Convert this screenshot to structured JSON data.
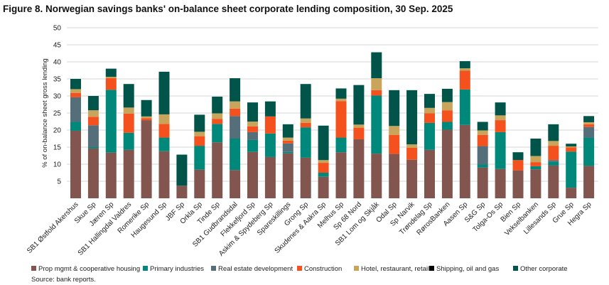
{
  "chart_data": {
    "type": "bar",
    "stacked": true,
    "title": "Figure 8. Norwegian savings banks' on-balance sheet corporate lending composition, 30 Sep. 2025",
    "ylabel": "% of on-balance sheet gross lending",
    "xlabel": "",
    "ylim": [
      0,
      50
    ],
    "yticks": [
      5,
      10,
      15,
      20,
      25,
      30,
      35,
      40,
      45,
      50
    ],
    "grid": true,
    "legend_placement": "bottom",
    "source": "Source: bank reports.",
    "categories": [
      "SB1 Østfold Akershus",
      "Skue Sp",
      "Jæren Sp",
      "SB1 Hallingdal Valdres",
      "Romerike Sp",
      "Haugesund Sp",
      "JBF Sp",
      "Orkla Sp",
      "Tinde Sp",
      "SB1 Gudbrandsdal",
      "Flekkefjord Sp",
      "Askim & Spydeberg Sp",
      "Spareskillings",
      "Grong Sp",
      "Skudenes & Aakra Sp",
      "Melhus Sp",
      "Sp 68 Nord",
      "SB1 Lom og Skjåk",
      "Odal Sp",
      "Sp Narvik",
      "Trøndelag Sp",
      "RørosBanken",
      "Aasen Sp",
      "S&G Sp",
      "Tolga-Os Sp",
      "Bien Sp",
      "Vekselbanken",
      "Lillesands Sp",
      "Grue Sp",
      "Hegra Sp"
    ],
    "series": [
      {
        "name": "Prop mgmt & cooperative housing",
        "color": "#82564f",
        "values": [
          19.8,
          14.6,
          13.4,
          14.2,
          22.9,
          13.8,
          3.7,
          8.4,
          16.4,
          8.3,
          13.6,
          12.1,
          13.2,
          11.9,
          6.3,
          13.5,
          17.3,
          13.1,
          13.0,
          11.3,
          14.2,
          20.1,
          21.5,
          9.0,
          8.6,
          8.2,
          8.5,
          9.6,
          3.1,
          9.5
        ]
      },
      {
        "name": "Primary industries",
        "color": "#00897b",
        "values": [
          2.6,
          0.4,
          18.4,
          5.0,
          0,
          4.0,
          0,
          7.0,
          5.4,
          9.2,
          3.5,
          6.9,
          0.4,
          8.9,
          1.2,
          4.3,
          0,
          17.0,
          0,
          0,
          7.9,
          2.3,
          10.4,
          0.9,
          10.8,
          0,
          0.9,
          1.1,
          10.6,
          8.3
        ]
      },
      {
        "name": "Real estate development",
        "color": "#546e7a",
        "values": [
          7.2,
          6.4,
          0,
          0,
          0,
          0,
          0,
          0,
          0,
          6.6,
          2.3,
          0,
          2.5,
          0,
          0,
          0,
          0,
          0,
          0,
          0,
          0,
          0,
          0,
          5.4,
          0,
          0,
          0,
          0.5,
          0,
          3.1
        ]
      },
      {
        "name": "Construction",
        "color": "#f4511e",
        "values": [
          1.3,
          2.5,
          3.4,
          5.6,
          0.6,
          4.0,
          0,
          2.8,
          1.5,
          2.2,
          1.7,
          5.0,
          0.8,
          1.3,
          2.9,
          10.7,
          3.4,
          1.6,
          5.6,
          3.5,
          2.8,
          3.4,
          5.5,
          3.3,
          3.5,
          3.0,
          1.2,
          4.2,
          1.2,
          0.8
        ]
      },
      {
        "name": "Hotel, restaurant, retail",
        "color": "#c8a55a",
        "values": [
          1.1,
          1.9,
          0.4,
          1.8,
          0.5,
          2.8,
          0,
          1.3,
          1.6,
          2.1,
          1.4,
          0,
          0.9,
          1.3,
          0.8,
          0.7,
          0.9,
          3.5,
          2.6,
          1.0,
          1.6,
          2.4,
          0.7,
          1.3,
          1.4,
          0,
          1.8,
          1.4,
          0.3,
          0.6
        ]
      },
      {
        "name": "Shipping, oil and gas",
        "color": "#000000",
        "values": [
          0,
          0,
          0,
          0,
          0,
          0,
          0,
          0,
          0,
          0,
          0,
          0,
          0,
          0,
          0,
          0,
          0,
          0,
          0,
          0,
          0,
          0,
          0,
          0,
          0,
          0,
          0,
          0,
          0,
          0
        ]
      },
      {
        "name": "Other corporate",
        "color": "#00544a",
        "values": [
          3.0,
          4.2,
          2.4,
          6.9,
          4.8,
          12.5,
          9.1,
          5.0,
          4.9,
          6.8,
          5.6,
          4.4,
          3.9,
          10.1,
          10.1,
          3.0,
          11.6,
          7.6,
          10.5,
          15.9,
          4.1,
          3.9,
          2.1,
          2.5,
          3.8,
          2.3,
          5.1,
          4.9,
          0.8,
          1.8
        ]
      }
    ]
  }
}
